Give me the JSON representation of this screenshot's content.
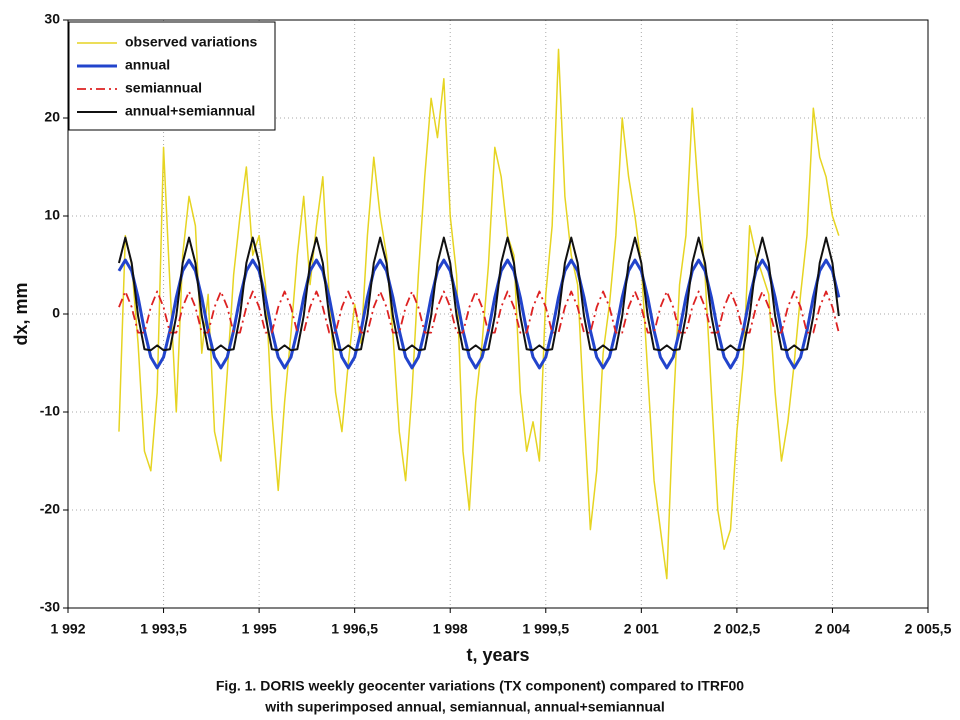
{
  "chart_data": {
    "type": "line",
    "caption": [
      "Fig. 1. DORIS weekly geocenter variations (TX component) compared to ITRF00",
      "with superimposed annual, semiannual, annual+semiannual"
    ],
    "xlabel": "t, years",
    "ylabel": "dx, mm",
    "xlim": [
      1992,
      2005.5
    ],
    "ylim": [
      -30,
      30
    ],
    "xticks": [
      {
        "value": 1992,
        "label": "1 992"
      },
      {
        "value": 1993.5,
        "label": "1 993,5"
      },
      {
        "value": 1995,
        "label": "1 995"
      },
      {
        "value": 1996.5,
        "label": "1 996,5"
      },
      {
        "value": 1998,
        "label": "1 998"
      },
      {
        "value": 1999.5,
        "label": "1 999,5"
      },
      {
        "value": 2001,
        "label": "2 001"
      },
      {
        "value": 2002.5,
        "label": "2 002,5"
      },
      {
        "value": 2004,
        "label": "2 004"
      },
      {
        "value": 2005.5,
        "label": "2 005,5"
      }
    ],
    "yticks": [
      -30,
      -20,
      -10,
      0,
      10,
      20,
      30
    ],
    "grid": true,
    "legend": "upper left",
    "x": [
      1992.8,
      1992.9,
      1993.0,
      1993.1,
      1993.2,
      1993.3,
      1993.4,
      1993.5,
      1993.6,
      1993.7,
      1993.8,
      1993.9,
      1994.0,
      1994.1,
      1994.2,
      1994.3,
      1994.4,
      1994.5,
      1994.6,
      1994.7,
      1994.8,
      1994.9,
      1995.0,
      1995.1,
      1995.2,
      1995.3,
      1995.4,
      1995.5,
      1995.6,
      1995.7,
      1995.8,
      1995.9,
      1996.0,
      1996.1,
      1996.2,
      1996.3,
      1996.4,
      1996.5,
      1996.6,
      1996.7,
      1996.8,
      1996.9,
      1997.0,
      1997.1,
      1997.2,
      1997.3,
      1997.4,
      1997.5,
      1997.6,
      1997.7,
      1997.8,
      1997.9,
      1998.0,
      1998.1,
      1998.2,
      1998.3,
      1998.4,
      1998.5,
      1998.6,
      1998.7,
      1998.8,
      1998.9,
      1999.0,
      1999.1,
      1999.2,
      1999.3,
      1999.4,
      1999.5,
      1999.6,
      1999.7,
      1999.8,
      1999.9,
      2000.0,
      2000.1,
      2000.2,
      2000.3,
      2000.4,
      2000.5,
      2000.6,
      2000.7,
      2000.8,
      2000.9,
      2001.0,
      2001.1,
      2001.2,
      2001.3,
      2001.4,
      2001.5,
      2001.6,
      2001.7,
      2001.8,
      2001.9,
      2002.0,
      2002.1,
      2002.2,
      2002.3,
      2002.4,
      2002.5,
      2002.6,
      2002.7,
      2002.8,
      2002.9,
      2003.0,
      2003.1,
      2003.2,
      2003.3,
      2003.4,
      2003.5,
      2003.6,
      2003.7,
      2003.8,
      2003.9,
      2004.0,
      2004.1
    ],
    "series": [
      {
        "name": "observed variations",
        "color": "#e6d422",
        "style": "solid",
        "width": 1.5,
        "values": [
          -12,
          8,
          5,
          -3,
          -14,
          -16,
          -8,
          17,
          3,
          -10,
          6,
          12,
          9,
          -4,
          2,
          -12,
          -15,
          -6,
          4,
          10,
          15,
          6,
          8,
          3,
          -10,
          -18,
          -9,
          -2,
          6,
          12,
          3,
          9,
          14,
          2,
          -8,
          -12,
          -5,
          1,
          -3,
          8,
          16,
          10,
          6,
          -2,
          -12,
          -17,
          -8,
          4,
          14,
          22,
          18,
          24,
          10,
          4,
          -14,
          -20,
          -9,
          -3,
          5,
          17,
          14,
          8,
          6,
          -8,
          -14,
          -11,
          -15,
          2,
          9,
          27,
          12,
          6,
          3,
          -10,
          -22,
          -16,
          -4,
          1,
          8,
          20,
          14,
          10,
          5,
          -6,
          -17,
          -22,
          -27,
          -10,
          3,
          8,
          21,
          12,
          4,
          -8,
          -20,
          -24,
          -22,
          -12,
          -5,
          9,
          6,
          4,
          2,
          -8,
          -15,
          -11,
          -5,
          2,
          8,
          21,
          16,
          14,
          10,
          8
        ]
      },
      {
        "name": "annual",
        "color": "#2244cc",
        "style": "solid",
        "width": 3,
        "values": [
          4.4,
          5.5,
          4.4,
          1.7,
          -1.7,
          -4.4,
          -5.5,
          -4.4,
          -1.7,
          1.7,
          4.4,
          5.5,
          4.4,
          1.7,
          -1.7,
          -4.4,
          -5.5,
          -4.4,
          -1.7,
          1.7,
          4.4,
          5.5,
          4.4,
          1.7,
          -1.7,
          -4.4,
          -5.5,
          -4.4,
          -1.7,
          1.7,
          4.4,
          5.5,
          4.4,
          1.7,
          -1.7,
          -4.4,
          -5.5,
          -4.4,
          -1.7,
          1.7,
          4.4,
          5.5,
          4.4,
          1.7,
          -1.7,
          -4.4,
          -5.5,
          -4.4,
          -1.7,
          1.7,
          4.4,
          5.5,
          4.4,
          1.7,
          -1.7,
          -4.4,
          -5.5,
          -4.4,
          -1.7,
          1.7,
          4.4,
          5.5,
          4.4,
          1.7,
          -1.7,
          -4.4,
          -5.5,
          -4.4,
          -1.7,
          1.7,
          4.4,
          5.5,
          4.4,
          1.7,
          -1.7,
          -4.4,
          -5.5,
          -4.4,
          -1.7,
          1.7,
          4.4,
          5.5,
          4.4,
          1.7,
          -1.7,
          -4.4,
          -5.5,
          -4.4,
          -1.7,
          1.7,
          4.4,
          5.5,
          4.4,
          1.7,
          -1.7,
          -4.4,
          -5.5,
          -4.4,
          -1.7,
          1.7,
          4.4,
          5.5,
          4.4,
          1.7,
          -1.7,
          -4.4,
          -5.5,
          -4.4,
          -1.7,
          1.7,
          4.4,
          5.5,
          4.4,
          1.7
        ]
      },
      {
        "name": "semiannual",
        "color": "#dd2222",
        "style": "dashdot",
        "width": 1.8,
        "values": [
          0.7,
          2.3,
          0.7,
          -1.9,
          -1.9,
          0.7,
          2.3,
          0.7,
          -1.9,
          -1.9,
          0.7,
          2.3,
          0.7,
          -1.9,
          -1.9,
          0.7,
          2.3,
          0.7,
          -1.9,
          -1.9,
          0.7,
          2.3,
          0.7,
          -1.9,
          -1.9,
          0.7,
          2.3,
          0.7,
          -1.9,
          -1.9,
          0.7,
          2.3,
          0.7,
          -1.9,
          -1.9,
          0.7,
          2.3,
          0.7,
          -1.9,
          -1.9,
          0.7,
          2.3,
          0.7,
          -1.9,
          -1.9,
          0.7,
          2.3,
          0.7,
          -1.9,
          -1.9,
          0.7,
          2.3,
          0.7,
          -1.9,
          -1.9,
          0.7,
          2.3,
          0.7,
          -1.9,
          -1.9,
          0.7,
          2.3,
          0.7,
          -1.9,
          -1.9,
          0.7,
          2.3,
          0.7,
          -1.9,
          -1.9,
          0.7,
          2.3,
          0.7,
          -1.9,
          -1.9,
          0.7,
          2.3,
          0.7,
          -1.9,
          -1.9,
          0.7,
          2.3,
          0.7,
          -1.9,
          -1.9,
          0.7,
          2.3,
          0.7,
          -1.9,
          -1.9,
          0.7,
          2.3,
          0.7,
          -1.9,
          -1.9,
          0.7,
          2.3,
          0.7,
          -1.9,
          -1.9,
          0.7,
          2.3,
          0.7,
          -1.9,
          -1.9,
          0.7,
          2.3,
          0.7,
          -1.9,
          -1.9,
          0.7,
          2.3,
          0.7,
          -1.9
        ]
      },
      {
        "name": "annual+semiannual",
        "color": "#111111",
        "style": "solid",
        "width": 2,
        "values": [
          5.2,
          7.8,
          5.2,
          -0.2,
          -3.6,
          -3.7,
          -3.2,
          -3.7,
          -3.6,
          -0.2,
          5.2,
          7.8,
          5.2,
          -0.2,
          -3.6,
          -3.7,
          -3.2,
          -3.7,
          -3.6,
          -0.2,
          5.2,
          7.8,
          5.2,
          -0.2,
          -3.6,
          -3.7,
          -3.2,
          -3.7,
          -3.6,
          -0.2,
          5.2,
          7.8,
          5.2,
          -0.2,
          -3.6,
          -3.7,
          -3.2,
          -3.7,
          -3.6,
          -0.2,
          5.2,
          7.8,
          5.2,
          -0.2,
          -3.6,
          -3.7,
          -3.2,
          -3.7,
          -3.6,
          -0.2,
          5.2,
          7.8,
          5.2,
          -0.2,
          -3.6,
          -3.7,
          -3.2,
          -3.7,
          -3.6,
          -0.2,
          5.2,
          7.8,
          5.2,
          -0.2,
          -3.6,
          -3.7,
          -3.2,
          -3.7,
          -3.6,
          -0.2,
          5.2,
          7.8,
          5.2,
          -0.2,
          -3.6,
          -3.7,
          -3.2,
          -3.7,
          -3.6,
          -0.2,
          5.2,
          7.8,
          5.2,
          -0.2,
          -3.6,
          -3.7,
          -3.2,
          -3.7,
          -3.6,
          -0.2,
          5.2,
          7.8,
          5.2,
          -0.2,
          -3.6,
          -3.7,
          -3.2,
          -3.7,
          -3.6,
          -0.2,
          5.2,
          7.8,
          5.2,
          -0.2,
          -3.6,
          -3.7,
          -3.2,
          -3.7,
          -3.6,
          -0.2,
          5.2,
          7.8,
          5.2,
          -0.2
        ]
      }
    ]
  }
}
